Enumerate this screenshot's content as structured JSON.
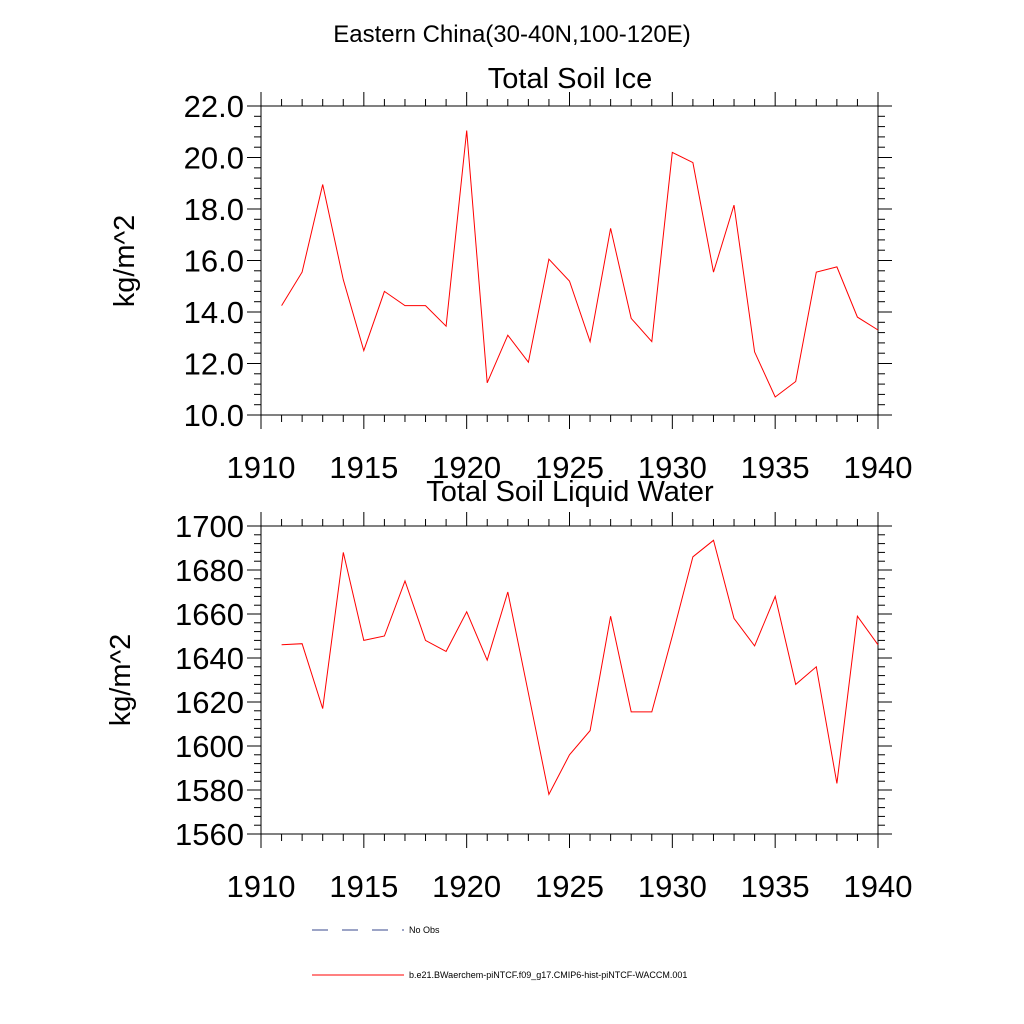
{
  "suptitle": "Eastern China(30-40N,100-120E)",
  "colors": {
    "model_line": "#ff0000",
    "obs_line": "#3a4a8c",
    "axes": "#000000"
  },
  "chart_data": [
    {
      "type": "line",
      "title": "Total Soil Ice",
      "ylabel": "kg/m^2",
      "xlabel": "",
      "xlim": [
        1910,
        1940
      ],
      "ylim": [
        10,
        22
      ],
      "xticks": [
        "1910",
        "1915",
        "1920",
        "1925",
        "1930",
        "1935",
        "1940"
      ],
      "yticks": [
        "10.0",
        "12.0",
        "14.0",
        "16.0",
        "18.0",
        "20.0",
        "22.0"
      ],
      "x": [
        1911,
        1912,
        1913,
        1914,
        1915,
        1916,
        1917,
        1918,
        1919,
        1920,
        1921,
        1922,
        1923,
        1924,
        1925,
        1926,
        1927,
        1928,
        1929,
        1930,
        1931,
        1932,
        1933,
        1934,
        1935,
        1936,
        1937,
        1938,
        1939,
        1940
      ],
      "series": [
        {
          "values": [
            14.25,
            15.55,
            18.95,
            15.25,
            12.5,
            14.8,
            14.25,
            14.25,
            13.45,
            21.05,
            11.25,
            13.1,
            12.05,
            16.05,
            15.2,
            12.85,
            17.25,
            13.75,
            12.85,
            20.2,
            19.8,
            15.55,
            18.15,
            12.45,
            10.7,
            11.3,
            15.55,
            15.75,
            13.8,
            13.3
          ]
        }
      ]
    },
    {
      "type": "line",
      "title": "Total Soil Liquid Water",
      "ylabel": "kg/m^2",
      "xlabel": "",
      "xlim": [
        1910,
        1940
      ],
      "ylim": [
        1560,
        1700
      ],
      "xticks": [
        "1910",
        "1915",
        "1920",
        "1925",
        "1930",
        "1935",
        "1940"
      ],
      "yticks": [
        "1560",
        "1580",
        "1600",
        "1620",
        "1640",
        "1660",
        "1680",
        "1700"
      ],
      "x": [
        1911,
        1912,
        1913,
        1914,
        1915,
        1916,
        1917,
        1918,
        1919,
        1920,
        1921,
        1922,
        1923,
        1924,
        1925,
        1926,
        1927,
        1928,
        1929,
        1930,
        1931,
        1932,
        1933,
        1934,
        1935,
        1936,
        1937,
        1938,
        1939,
        1940
      ],
      "series": [
        {
          "values": [
            1646,
            1646.5,
            1617,
            1688,
            1648,
            1650,
            1675,
            1648,
            1643,
            1661,
            1639,
            1670,
            1624,
            1578,
            1596,
            1607,
            1659,
            1615.5,
            1615.5,
            1650,
            1686,
            1693.5,
            1658,
            1645.5,
            1668,
            1628,
            1636,
            1583,
            1659,
            1646
          ]
        }
      ]
    }
  ],
  "legend": {
    "placement": "bottom",
    "entries": [
      {
        "label": "No Obs",
        "style": "dashed"
      },
      {
        "label": "b.e21.BWaerchem-piNTCF.f09_g17.CMIP6-hist-piNTCF-WACCM.001",
        "style": "solid"
      }
    ]
  }
}
